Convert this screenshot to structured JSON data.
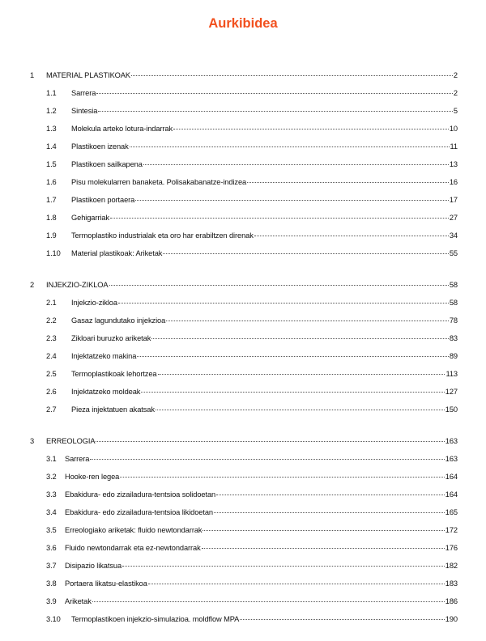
{
  "title": "Aurkibidea",
  "colors": {
    "title": "#f2501e"
  },
  "chapters": [
    {
      "num": "1",
      "title": "MATERIAL PLASTIKOAK",
      "page": "2",
      "sections": [
        {
          "num": "1.1",
          "title": "Sarrera",
          "page": "2"
        },
        {
          "num": "1.2",
          "title": "Sintesia",
          "page": "5"
        },
        {
          "num": "1.3",
          "title": "Molekula arteko lotura-indarrak",
          "page": "10"
        },
        {
          "num": "1.4",
          "title": "Plastikoen izenak",
          "page": "11"
        },
        {
          "num": "1.5",
          "title": "Plastikoen sailkapena",
          "page": "13"
        },
        {
          "num": "1.6",
          "title": "Pisu molekularren banaketa. Polisakabanatze-indizea",
          "page": "16"
        },
        {
          "num": "1.7",
          "title": "Plastikoen portaera",
          "page": "17"
        },
        {
          "num": "1.8",
          "title": "Gehigarriak",
          "page": "27"
        },
        {
          "num": "1.9",
          "title": "Termoplastiko industrialak eta oro har erabiltzen direnak",
          "page": "34"
        },
        {
          "num": "1.10",
          "title": "Material plastikoak: Ariketak",
          "page": "55"
        }
      ]
    },
    {
      "num": "2",
      "title": "INJEKZIO-ZIKLOA",
      "page": "58",
      "sections": [
        {
          "num": "2.1",
          "title": "Injekzio-zikloa",
          "page": "58"
        },
        {
          "num": "2.2",
          "title": "Gasaz lagundutako injekzioa",
          "page": "78"
        },
        {
          "num": "2.3",
          "title": "Zikloari buruzko ariketak",
          "page": "83"
        },
        {
          "num": "2.4",
          "title": "Injektatzeko makina",
          "page": "89"
        },
        {
          "num": "2.5",
          "title": "Termoplastikoak lehortzea",
          "page": "113"
        },
        {
          "num": "2.6",
          "title": "Injektatzeko moldeak",
          "page": "127"
        },
        {
          "num": "2.7",
          "title": "Pieza injektatuen akatsak",
          "page": "150"
        }
      ]
    },
    {
      "num": "3",
      "title": "ERREOLOGIA",
      "page": "163",
      "sections": [
        {
          "num": "3.1",
          "title": "Sarrera",
          "page": "163",
          "narrow": true
        },
        {
          "num": "3.2",
          "title": "Hooke-ren legea",
          "page": "164",
          "narrow": true
        },
        {
          "num": "3.3",
          "title": "Ebakidura- edo zizailadura-tentsioa solidoetan",
          "page": "164",
          "narrow": true
        },
        {
          "num": "3.4",
          "title": "Ebakidura- edo zizailadura-tentsioa likidoetan",
          "page": "165",
          "narrow": true
        },
        {
          "num": "3.5",
          "title": "Erreologiako ariketak: fluido newtondarrak",
          "page": "172",
          "narrow": true
        },
        {
          "num": "3.6",
          "title": "Fluido newtondarrak eta ez-newtondarrak",
          "page": "176",
          "narrow": true
        },
        {
          "num": "3.7",
          "title": "Disipazio likatsua",
          "page": "182",
          "narrow": true
        },
        {
          "num": "3.8",
          "title": "Portaera likatsu-elastikoa",
          "page": "183",
          "narrow": true
        },
        {
          "num": "3.9",
          "title": "Ariketak",
          "page": "186",
          "narrow": true
        },
        {
          "num": "3.10",
          "title": "Termoplastikoen injekzio-simulazioa. moldflow MPA",
          "page": "190"
        }
      ]
    }
  ]
}
